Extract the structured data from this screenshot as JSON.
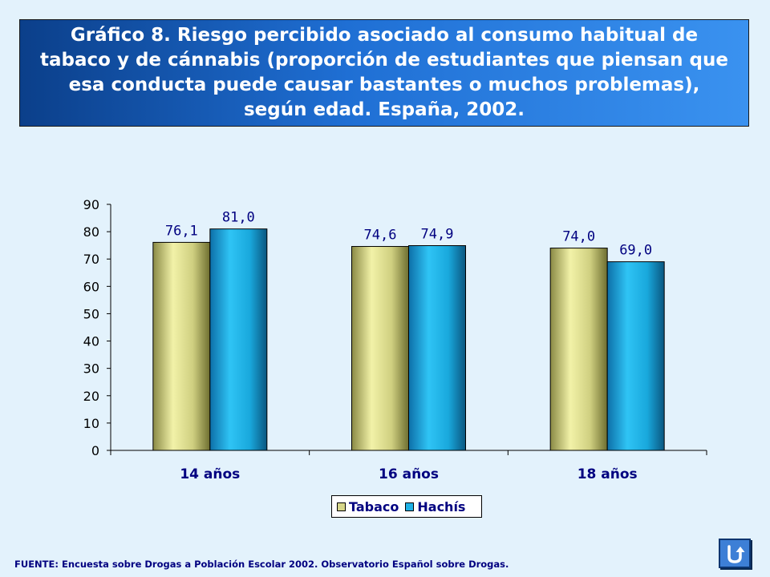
{
  "title": "Gráfico 8. Riesgo percibido asociado al consumo habitual de tabaco y de cánnabis (proporción de estudiantes que piensan que esa conducta puede causar bastantes o muchos problemas), según edad. España, 2002.",
  "colors": {
    "tabaco": "#d6d68a",
    "hachis": "#1fb2e6",
    "value_label": "#000080"
  },
  "chart_data": {
    "type": "bar",
    "title": "Gráfico 8. Riesgo percibido asociado al consumo habitual de tabaco y de cánnabis (proporción de estudiantes que piensan que esa conducta puede causar bastantes o muchos problemas), según edad. España, 2002.",
    "categories": [
      "14 años",
      "16 años",
      "18 años"
    ],
    "series": [
      {
        "name": "Tabaco",
        "values": [
          76.1,
          74.6,
          74.0
        ],
        "labels": [
          "76,1",
          "74,6",
          "74,0"
        ]
      },
      {
        "name": "Hachís",
        "values": [
          81.0,
          74.9,
          69.0
        ],
        "labels": [
          "81,0",
          "74,9",
          "69,0"
        ]
      }
    ],
    "yticks": [
      "0",
      "10",
      "20",
      "30",
      "40",
      "50",
      "60",
      "70",
      "80",
      "90"
    ],
    "ylim": [
      0,
      90
    ],
    "xlabel": "",
    "ylabel": "",
    "legend_position": "bottom",
    "grid": false
  },
  "legend": {
    "items": [
      {
        "label": "Tabaco"
      },
      {
        "label": "Hachís"
      }
    ]
  },
  "source": "FUENTE: Encuesta sobre Drogas a Población Escolar 2002. Observatorio Español sobre Drogas.",
  "nav": {
    "return_icon": "return-arrow-icon"
  }
}
